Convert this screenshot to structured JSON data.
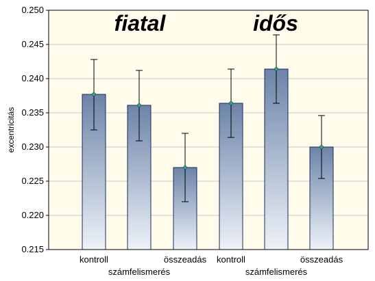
{
  "chart_data": {
    "type": "bar",
    "ylabel": "excentricitás",
    "ylim": [
      0.215,
      0.25
    ],
    "yticks": [
      "0.215",
      "0.220",
      "0.225",
      "0.230",
      "0.235",
      "0.240",
      "0.245",
      "0.250"
    ],
    "groups": [
      {
        "title": "fiatal",
        "categories": [
          "kontroll",
          "számfelismerés",
          "összeadás"
        ],
        "values": [
          0.2377,
          0.2361,
          0.227
        ],
        "error_low": [
          0.2325,
          0.2309,
          0.222
        ],
        "error_high": [
          0.2428,
          0.2412,
          0.232
        ]
      },
      {
        "title": "idős",
        "categories": [
          "kontroll",
          "számfelismerés",
          "összeadás"
        ],
        "values": [
          0.2364,
          0.2414,
          0.23
        ],
        "error_low": [
          0.2314,
          0.2364,
          0.2254
        ],
        "error_high": [
          0.2414,
          0.2464,
          0.2346
        ]
      }
    ],
    "grid": true,
    "colors": {
      "background": "#fffcec",
      "grid": "#c8c8c8",
      "bar_top": "#6c84a8",
      "bar_bottom": "#eef2f8",
      "bar_border": "#1c2a5a",
      "marker": "#2aa88c"
    }
  }
}
